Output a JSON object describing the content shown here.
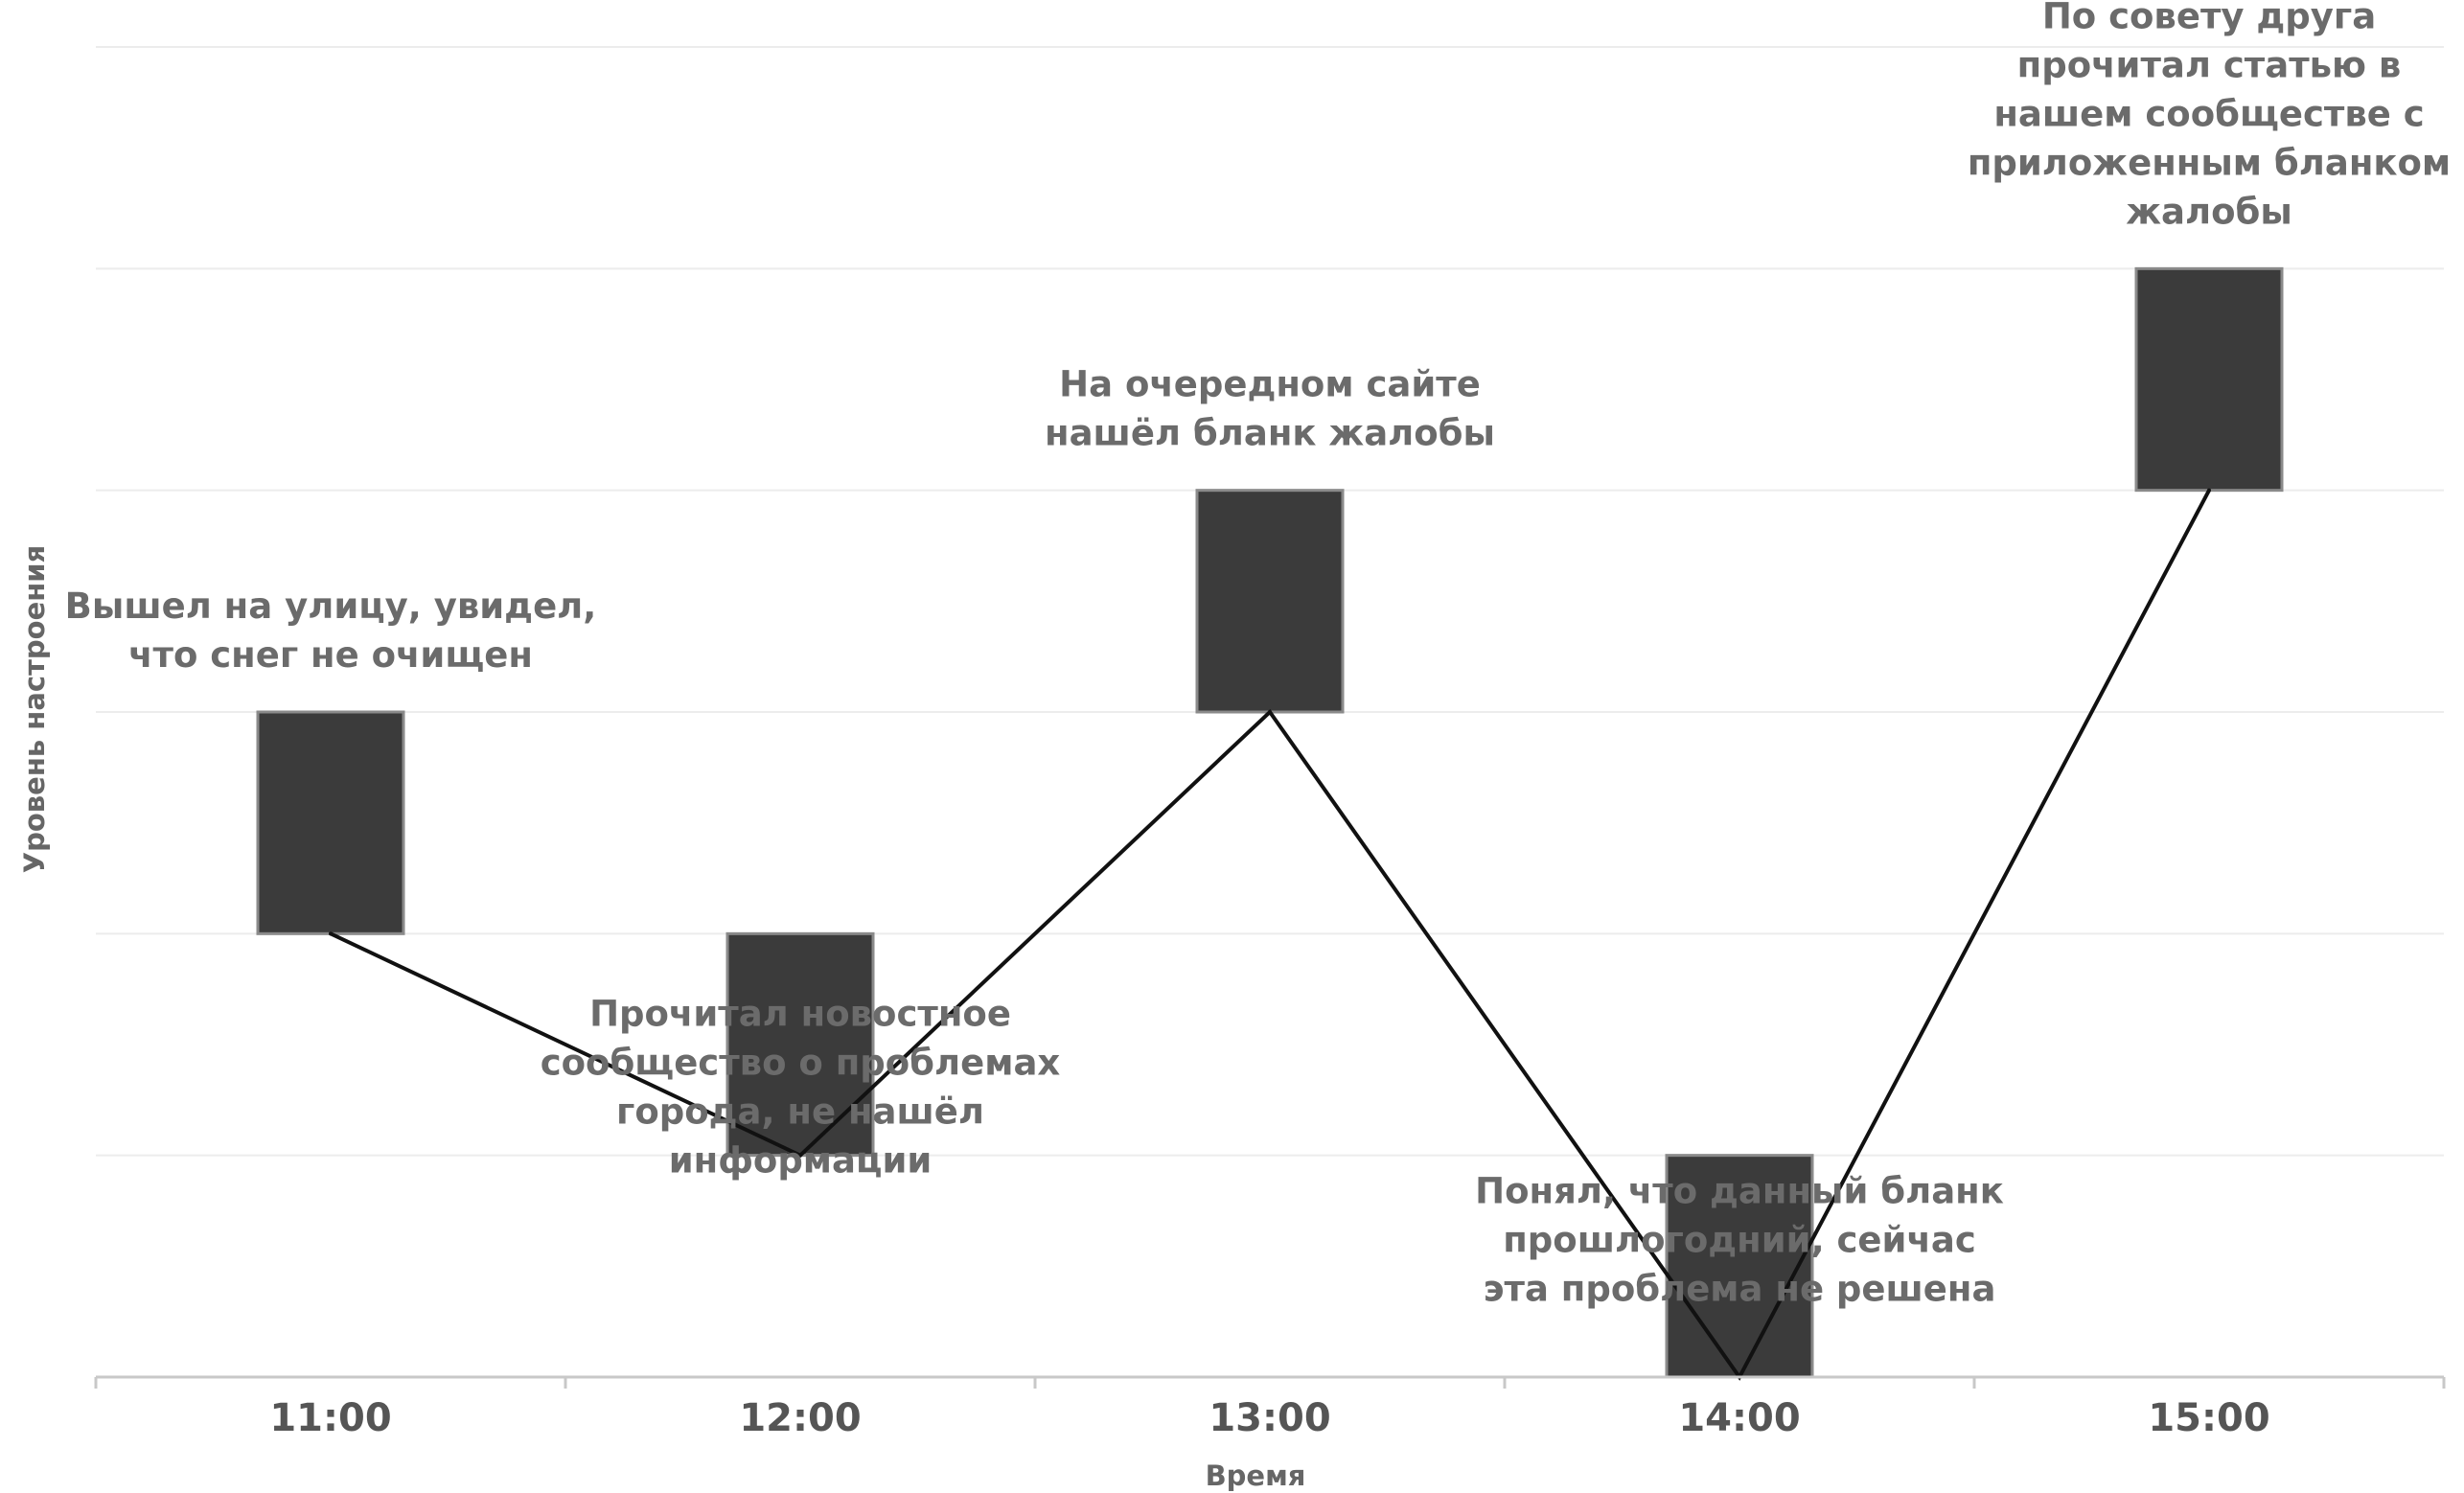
{
  "chart_data": {
    "type": "line",
    "title": "",
    "xlabel": "Время",
    "ylabel": "Уровень настроения",
    "categories": [
      "11:00",
      "12:00",
      "13:00",
      "14:00",
      "15:00"
    ],
    "ylim": [
      0,
      6
    ],
    "grid": true,
    "legend": "none",
    "series": [
      {
        "values": [
          2,
          1,
          3,
          0,
          4
        ],
        "boxes": [
          [
            2,
            3
          ],
          [
            1,
            2
          ],
          [
            3,
            4
          ],
          [
            0,
            1
          ],
          [
            4,
            5
          ]
        ]
      }
    ],
    "annotations": [
      {
        "category": "11:00",
        "lines": [
          "Вышел на улицу, увидел,",
          "что снег не очищен"
        ]
      },
      {
        "category": "12:00",
        "lines": [
          "Прочитал новостное",
          "сообщество о проблемах",
          "города, не нашёл",
          "информации"
        ]
      },
      {
        "category": "13:00",
        "lines": [
          "На очередном сайте",
          "нашёл бланк жалобы"
        ]
      },
      {
        "category": "14:00",
        "lines": [
          "Понял, что данный бланк",
          "прошлогодний, сейчас",
          "эта проблема не решена"
        ]
      },
      {
        "category": "15:00",
        "lines": [
          "По совету друга",
          "прочитал статью в",
          "нашем сообществе с",
          "приложенным бланком",
          "жалобы"
        ]
      }
    ],
    "colors": {
      "bar": "#3b3b3b",
      "line": "#111111",
      "grid": "#ececec",
      "axis": "#c8c8c8",
      "text": "#6b6b6b"
    }
  }
}
